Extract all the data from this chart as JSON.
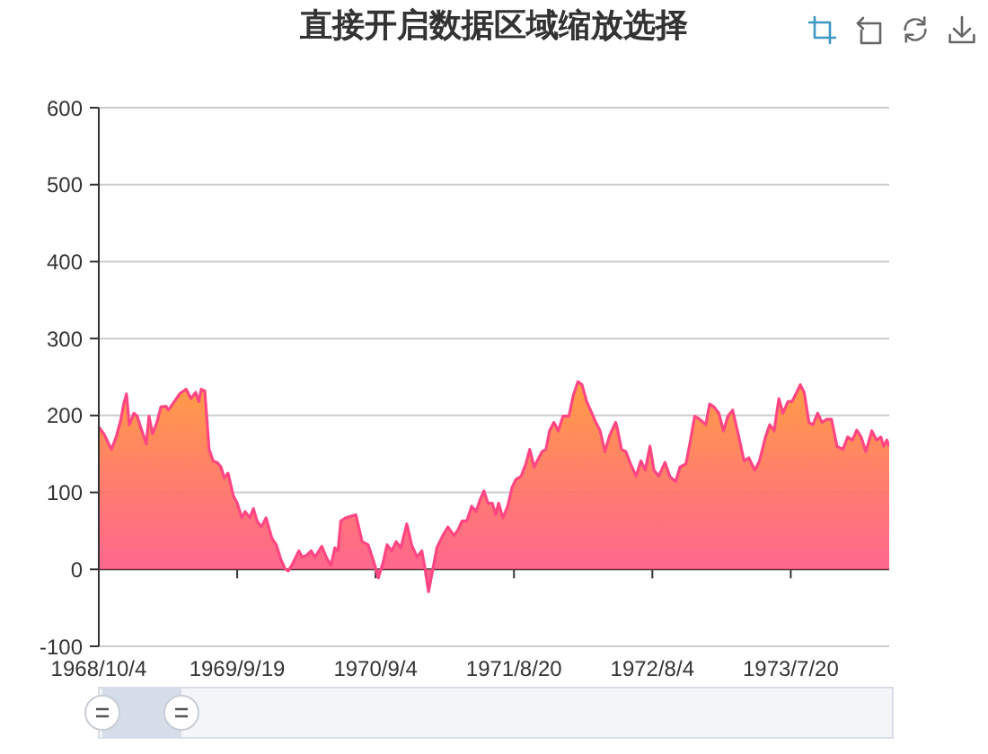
{
  "chart_data": {
    "type": "area",
    "title": "直接开启数据区域缩放选择",
    "color": "#ff4683",
    "grid": "y",
    "xlim": [
      "1968-10-04",
      "1974-03-26"
    ],
    "xticks": [
      {
        "value": "1968-10-04",
        "label": "1968/10/4"
      },
      {
        "value": "1969-09-19",
        "label": "1969/9/19"
      },
      {
        "value": "1970-09-04",
        "label": "1970/9/4"
      },
      {
        "value": "1971-08-20",
        "label": "1971/8/20"
      },
      {
        "value": "1972-08-04",
        "label": "1972/8/4"
      },
      {
        "value": "1973-07-20",
        "label": "1973/7/20"
      }
    ],
    "ylim": [
      -100,
      600
    ],
    "yticks": [
      -100,
      0,
      100,
      200,
      300,
      400,
      500,
      600
    ],
    "x": [
      "1968-10-04",
      "1968-10-17",
      "1968-11-01",
      "1968-11-05",
      "1968-11-17",
      "1968-11-29",
      "1968-12-06",
      "1968-12-13",
      "1968-12-20",
      "1969-01-01",
      "1969-01-09",
      "1969-01-21",
      "1969-02-01",
      "1969-02-08",
      "1969-02-17",
      "1969-02-28",
      "1969-03-10",
      "1969-03-23",
      "1969-03-29",
      "1969-04-13",
      "1969-04-28",
      "1969-05-13",
      "1969-05-25",
      "1969-06-06",
      "1969-06-14",
      "1969-06-20",
      "1969-06-29",
      "1969-07-10",
      "1969-07-20",
      "1969-07-30",
      "1969-08-09",
      "1969-08-17",
      "1969-08-27",
      "1969-09-09",
      "1969-09-19",
      "1969-10-01",
      "1969-10-09",
      "1969-10-21",
      "1969-10-30",
      "1969-11-08",
      "1969-11-19",
      "1969-12-01",
      "1969-12-16",
      "1969-12-27",
      "1970-01-08",
      "1970-01-18",
      "1970-01-26",
      "1970-02-04",
      "1970-02-22",
      "1970-03-02",
      "1970-03-13",
      "1970-03-25",
      "1970-04-04",
      "1970-04-21",
      "1970-05-02",
      "1970-05-14",
      "1970-05-24",
      "1970-06-01",
      "1970-06-08",
      "1970-06-21",
      "1970-07-16",
      "1970-08-01",
      "1970-08-16",
      "1970-08-31",
      "1970-09-11",
      "1970-09-23",
      "1970-10-03",
      "1970-10-15",
      "1970-10-26",
      "1970-11-07",
      "1970-11-22",
      "1970-12-04",
      "1970-12-18",
      "1970-12-30",
      "1971-01-07",
      "1971-01-16",
      "1971-01-27",
      "1971-02-06",
      "1971-02-21",
      "1971-03-06",
      "1971-03-21",
      "1971-03-31",
      "1971-04-11",
      "1971-04-23",
      "1971-05-05",
      "1971-05-16",
      "1971-05-26",
      "1971-06-05",
      "1971-06-15",
      "1971-06-26",
      "1971-07-05",
      "1971-07-12",
      "1971-07-23",
      "1971-08-04",
      "1971-08-15",
      "1971-08-25",
      "1971-09-07",
      "1971-09-19",
      "1971-09-29",
      "1971-10-10",
      "1971-10-22",
      "1971-10-30",
      "1971-11-09",
      "1971-11-18",
      "1971-11-29",
      "1971-12-10",
      "1971-12-22",
      "1972-01-06",
      "1972-01-17",
      "1972-01-29",
      "1972-02-08",
      "1972-02-20",
      "1972-03-04",
      "1972-03-14",
      "1972-03-25",
      "1972-04-06",
      "1972-04-18",
      "1972-05-03",
      "1972-05-07",
      "1972-05-18",
      "1972-05-29",
      "1972-06-10",
      "1972-06-24",
      "1972-07-06",
      "1972-07-17",
      "1972-07-29",
      "1972-08-08",
      "1972-08-20",
      "1972-09-05",
      "1972-09-17",
      "1972-10-02",
      "1972-10-13",
      "1972-10-28",
      "1972-11-07",
      "1972-11-19",
      "1972-12-02",
      "1972-12-17",
      "1972-12-27",
      "1973-01-07",
      "1973-01-19",
      "1973-01-31",
      "1973-02-11",
      "1973-02-23",
      "1973-03-09",
      "1973-03-24",
      "1973-04-05",
      "1973-04-20",
      "1973-05-02",
      "1973-05-17",
      "1973-05-28",
      "1973-06-08",
      "1973-06-20",
      "1973-06-30",
      "1973-07-13",
      "1973-07-23",
      "1973-08-04",
      "1973-08-13",
      "1973-08-23",
      "1973-09-04",
      "1973-09-14",
      "1973-09-26",
      "1973-10-07",
      "1973-10-19",
      "1973-10-31",
      "1973-11-14",
      "1973-11-29",
      "1973-12-11",
      "1973-12-23",
      "1974-01-03",
      "1974-01-14",
      "1974-01-26",
      "1974-02-10",
      "1974-02-22",
      "1974-03-05",
      "1974-03-12",
      "1974-03-20",
      "1974-03-26"
    ],
    "values": [
      185,
      176,
      160,
      156,
      172,
      195,
      215,
      228,
      188,
      203,
      199,
      180,
      163,
      199,
      176,
      191,
      211,
      212,
      207,
      218,
      229,
      234,
      222,
      230,
      218,
      234,
      232,
      156,
      141,
      139,
      133,
      119,
      125,
      96,
      86,
      67,
      75,
      67,
      79,
      63,
      55,
      67,
      40,
      32,
      12,
      1,
      -2,
      5,
      24,
      16,
      18,
      24,
      16,
      30,
      16,
      5,
      28,
      24,
      63,
      67,
      71,
      36,
      32,
      9,
      -11,
      9,
      32,
      24,
      36,
      28,
      59,
      32,
      16,
      24,
      1,
      -29,
      1,
      28,
      44,
      55,
      44,
      51,
      63,
      63,
      82,
      75,
      90,
      102,
      86,
      86,
      71,
      86,
      67,
      82,
      106,
      117,
      121,
      137,
      156,
      133,
      145,
      153,
      156,
      180,
      191,
      180,
      199,
      199,
      226,
      244,
      240,
      218,
      203,
      191,
      180,
      153,
      174,
      191,
      184,
      156,
      153,
      137,
      121,
      141,
      129,
      160,
      129,
      121,
      139,
      121,
      114,
      133,
      137,
      164,
      199,
      195,
      188,
      215,
      211,
      203,
      180,
      199,
      207,
      176,
      141,
      145,
      129,
      141,
      172,
      188,
      180,
      222,
      203,
      218,
      218,
      230,
      240,
      230,
      191,
      188,
      203,
      191,
      195,
      195,
      160,
      156,
      172,
      168,
      181,
      172,
      153,
      180,
      168,
      172,
      160,
      168,
      160
    ]
  }
}
